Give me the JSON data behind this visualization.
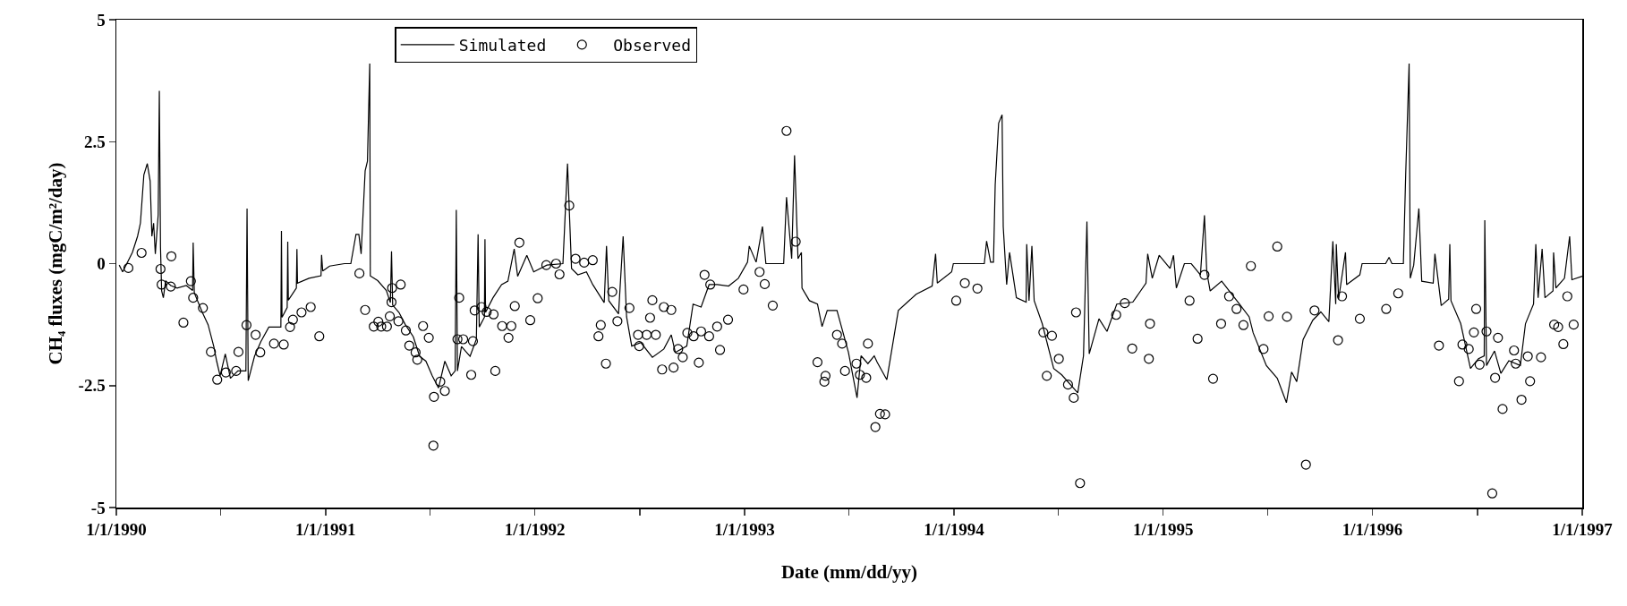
{
  "chart_data": {
    "type": "line",
    "xlabel": "Date (mm/dd/yy)",
    "ylabel": "CH₄ fluxes (mgC/m²/day)",
    "xlim": [
      "1990-01-01",
      "1997-01-01"
    ],
    "xticks": [
      {
        "value": "1990-01-01",
        "label": "1/1/1990"
      },
      {
        "value": "1990-07-02",
        "label": null
      },
      {
        "value": "1991-01-01",
        "label": "1/1/1991"
      },
      {
        "value": "1991-07-02",
        "label": null
      },
      {
        "value": "1992-01-01",
        "label": "1/1/1992"
      },
      {
        "value": "1992-07-02",
        "label": null
      },
      {
        "value": "1993-01-01",
        "label": "1/1/1993"
      },
      {
        "value": "1993-07-02",
        "label": null
      },
      {
        "value": "1994-01-01",
        "label": "1/1/1994"
      },
      {
        "value": "1994-07-02",
        "label": null
      },
      {
        "value": "1995-01-01",
        "label": "1/1/1995"
      },
      {
        "value": "1995-07-02",
        "label": null
      },
      {
        "value": "1996-01-01",
        "label": "1/1/1996"
      },
      {
        "value": "1996-07-02",
        "label": null
      },
      {
        "value": "1997-01-01",
        "label": "1/1/1997"
      }
    ],
    "ylim": [
      -5,
      5
    ],
    "yticks": [
      -5,
      -2.5,
      0,
      2.5,
      5
    ],
    "grid": false,
    "legend": "top",
    "series": [
      {
        "name": "Simulated",
        "color": "#000000",
        "line_style": "solid",
        "x": [
          "1990-01-06",
          "1990-01-12",
          "1990-01-29",
          "1990-02-07",
          "1990-02-12",
          "1990-02-18",
          "1990-02-24",
          "1990-03-01",
          "1990-03-04",
          "1990-03-07",
          "1990-03-10",
          "1990-03-15",
          "1990-03-17",
          "1990-03-19",
          "1990-03-21",
          "1990-03-24",
          "1990-03-28",
          "1990-04-06",
          "1990-04-17",
          "1990-05-03",
          "1990-05-14",
          "1990-05-15",
          "1990-05-17",
          "1990-05-31",
          "1990-06-10",
          "1990-06-20",
          "1990-06-25",
          "1990-07-01",
          "1990-07-10",
          "1990-07-19",
          "1990-08-01",
          "1990-08-15",
          "1990-08-17",
          "1990-08-19",
          "1990-08-30",
          "1990-09-10",
          "1990-09-24",
          "1990-10-15",
          "1990-10-16",
          "1990-10-17",
          "1990-10-26",
          "1990-10-27",
          "1990-10-28",
          "1990-11-11",
          "1990-11-12",
          "1990-11-13",
          "1990-12-03",
          "1990-12-24",
          "1990-12-25",
          "1990-12-27",
          "1991-01-08",
          "1991-02-03",
          "1991-02-14",
          "1991-02-23",
          "1991-02-28",
          "1991-03-04",
          "1991-03-11",
          "1991-03-15",
          "1991-03-19",
          "1991-03-20",
          "1991-04-02",
          "1991-04-17",
          "1991-04-24",
          "1991-04-26",
          "1991-04-28",
          "1991-05-09",
          "1991-05-20",
          "1991-06-03",
          "1991-06-14",
          "1991-06-25",
          "1991-07-06",
          "1991-07-17",
          "1991-07-28",
          "1991-08-08",
          "1991-08-15",
          "1991-08-17",
          "1991-08-19",
          "1991-08-26",
          "1991-09-10",
          "1991-09-21",
          "1991-09-24",
          "1991-09-26",
          "1991-10-05",
          "1991-10-06",
          "1991-10-07",
          "1991-10-20",
          "1991-11-04",
          "1991-11-15",
          "1991-11-26",
          "1991-12-02",
          "1991-12-18",
          "1991-12-30",
          "1992-01-22",
          "1992-02-19",
          "1992-02-27",
          "1992-03-05",
          "1992-03-16",
          "1992-03-31",
          "1992-04-11",
          "1992-05-01",
          "1992-05-05",
          "1992-05-09",
          "1992-05-26",
          "1992-06-03",
          "1992-06-09",
          "1992-06-18",
          "1992-07-04",
          "1992-07-24",
          "1992-08-13",
          "1992-08-26",
          "1992-09-02",
          "1992-09-22",
          "1992-10-03",
          "1992-10-17",
          "1992-10-31",
          "1992-11-14",
          "1992-12-04",
          "1992-12-21",
          "1993-01-06",
          "1993-01-09",
          "1993-01-21",
          "1993-02-01",
          "1993-02-07",
          "1993-03-10",
          "1993-03-15",
          "1993-03-24",
          "1993-03-29",
          "1993-04-04",
          "1993-04-10",
          "1993-04-11",
          "1993-04-24",
          "1993-05-08",
          "1993-05-16",
          "1993-05-25",
          "1993-06-11",
          "1993-07-01",
          "1993-07-16",
          "1993-07-23",
          "1993-08-04",
          "1993-08-15",
          "1993-08-20",
          "1993-09-06",
          "1993-09-26",
          "1993-10-27",
          "1993-11-24",
          "1993-11-30",
          "1993-12-03",
          "1993-12-28",
          "1993-12-31",
          "1994-02-23",
          "1994-02-27",
          "1994-03-06",
          "1994-03-11",
          "1994-03-14",
          "1994-03-20",
          "1994-03-26",
          "1994-03-28",
          "1994-04-03",
          "1994-04-08",
          "1994-04-20",
          "1994-05-07",
          "1994-05-08",
          "1994-05-12",
          "1994-05-17",
          "1994-05-21",
          "1994-06-04",
          "1994-06-24",
          "1994-07-08",
          "1994-08-05",
          "1994-08-15",
          "1994-08-21",
          "1994-08-25",
          "1994-09-11",
          "1994-09-25",
          "1994-10-12",
          "1994-11-09",
          "1994-12-02",
          "1994-12-05",
          "1994-12-13",
          "1994-12-25",
          "1995-01-13",
          "1995-01-19",
          "1995-01-24",
          "1995-02-07",
          "1995-02-19",
          "1995-03-07",
          "1995-03-14",
          "1995-03-18",
          "1995-03-24",
          "1995-04-13",
          "1995-05-14",
          "1995-05-31",
          "1995-06-07",
          "1995-06-30",
          "1995-07-19",
          "1995-08-04",
          "1995-08-13",
          "1995-08-22",
          "1995-09-02",
          "1995-09-19",
          "1995-10-03",
          "1995-10-17",
          "1995-10-24",
          "1995-10-29",
          "1995-10-30",
          "1995-11-03",
          "1995-11-15",
          "1995-11-17",
          "1995-12-10",
          "1995-12-14",
          "1996-01-24",
          "1996-01-30",
          "1996-02-04",
          "1996-02-24",
          "1996-02-28",
          "1996-03-05",
          "1996-03-07",
          "1996-03-13",
          "1996-03-22",
          "1996-03-27",
          "1996-04-16",
          "1996-04-19",
          "1996-04-30",
          "1996-05-13",
          "1996-05-15",
          "1996-05-17",
          "1996-06-03",
          "1996-06-20",
          "1996-07-04",
          "1996-07-14",
          "1996-07-15",
          "1996-07-18",
          "1996-08-01",
          "1996-08-12",
          "1996-08-26",
          "1996-09-15",
          "1996-09-24",
          "1996-10-08",
          "1996-10-12",
          "1996-10-16",
          "1996-10-23",
          "1996-10-28",
          "1996-11-11",
          "1996-11-12",
          "1996-11-16",
          "1996-12-01",
          "1996-12-10",
          "1996-12-14",
          "1997-01-01"
        ],
        "values": [
          -0.03,
          -0.17,
          0.23,
          0.56,
          0.83,
          1.82,
          2.05,
          1.69,
          0.56,
          0.83,
          0.2,
          1.0,
          3.54,
          0.35,
          -0.56,
          -0.7,
          -0.35,
          -0.45,
          -0.5,
          -0.45,
          -0.55,
          0.43,
          -0.6,
          -1.0,
          -1.25,
          -1.7,
          -2.0,
          -2.3,
          -1.85,
          -2.35,
          -2.2,
          -2.2,
          1.13,
          -2.4,
          -1.9,
          -1.6,
          -1.3,
          -1.3,
          0.67,
          -1.1,
          -0.9,
          0.45,
          -0.75,
          -0.5,
          0.3,
          -0.4,
          -0.3,
          -0.25,
          0.18,
          -0.15,
          -0.05,
          0.0,
          0.0,
          0.6,
          0.6,
          0.2,
          1.9,
          2.1,
          4.1,
          -0.25,
          -0.35,
          -0.55,
          -0.8,
          0.25,
          -0.85,
          -1.0,
          -1.25,
          -1.5,
          -1.9,
          -2.0,
          -2.3,
          -2.55,
          -2.0,
          -2.3,
          -2.2,
          1.1,
          -2.2,
          -1.7,
          -1.9,
          -1.55,
          0.6,
          -1.3,
          -1.1,
          0.5,
          -1.0,
          -0.7,
          -0.43,
          -0.36,
          0.3,
          -0.26,
          0.17,
          -0.17,
          -0.03,
          0,
          2.05,
          -0.1,
          -0.23,
          -0.17,
          -0.43,
          -0.8,
          0.36,
          -0.76,
          -1.03,
          0.56,
          -1.09,
          -1.69,
          -1.62,
          -1.92,
          -1.75,
          -1.46,
          -1.82,
          -1.69,
          -0.83,
          -0.89,
          -0.43,
          -0.43,
          -0.46,
          -0.3,
          0.03,
          0.36,
          0.03,
          0.76,
          0,
          0,
          1.36,
          0.1,
          2.22,
          0.1,
          0.23,
          -0.5,
          -0.76,
          -0.83,
          -1.29,
          -0.96,
          -0.96,
          -1.82,
          -2.75,
          -1.89,
          -2.05,
          -1.89,
          -2.02,
          -2.38,
          -0.96,
          -0.63,
          -0.46,
          0.2,
          -0.4,
          -0.17,
          0,
          0,
          0.46,
          0.03,
          0.03,
          1.62,
          2.88,
          3.05,
          0.76,
          -0.43,
          0.23,
          -0.7,
          -0.79,
          0.4,
          -0.76,
          0.36,
          -0.76,
          -1.23,
          -2.15,
          -2.28,
          -2.65,
          -1.89,
          0.86,
          -1.85,
          -1.13,
          -1.39,
          -0.83,
          -0.79,
          -0.4,
          0.2,
          -0.3,
          0.17,
          -0.1,
          0.17,
          -0.5,
          0,
          0,
          -0.23,
          0.99,
          -0.17,
          -0.56,
          -0.36,
          -0.83,
          -1.09,
          -1.42,
          -2.09,
          -2.35,
          -2.85,
          -2.22,
          -2.42,
          -1.56,
          -1.16,
          -0.99,
          -1.19,
          0.46,
          -0.83,
          0.4,
          -0.73,
          0.23,
          -0.43,
          -0.23,
          0,
          0,
          0.13,
          0,
          0,
          1.82,
          4.1,
          -0.3,
          -0.03,
          1.13,
          -0.36,
          -0.4,
          0.2,
          -0.86,
          -0.73,
          0.4,
          -0.76,
          -1.23,
          -2.15,
          -1.95,
          -1.89,
          0.89,
          -2.09,
          -1.79,
          -2.25,
          -1.99,
          -2.09,
          -1.23,
          -0.83,
          0.4,
          -0.7,
          0.3,
          -0.7,
          -0.56,
          0.23,
          -0.5,
          -0.3,
          0.56,
          -0.33,
          -0.26
        ]
      },
      {
        "name": "Observed",
        "type": "scatter",
        "color": "#000000",
        "marker": "circle",
        "x": [
          "1990-01-22",
          "1990-02-14",
          "1990-03-19",
          "1990-03-21",
          "1990-04-07",
          "1990-04-06",
          "1990-04-28",
          "1990-05-11",
          "1990-05-15",
          "1990-06-01",
          "1990-06-15",
          "1990-06-26",
          "1990-07-11",
          "1990-07-29",
          "1990-08-02",
          "1990-08-16",
          "1990-09-01",
          "1990-09-09",
          "1990-10-03",
          "1990-10-20",
          "1990-10-31",
          "1990-11-05",
          "1990-11-20",
          "1990-12-06",
          "1990-12-21",
          "1991-03-01",
          "1991-03-11",
          "1991-03-26",
          "1991-04-03",
          "1991-04-08",
          "1991-04-18",
          "1991-04-23",
          "1991-04-26",
          "1991-04-27",
          "1991-05-12",
          "1991-05-08",
          "1991-05-21",
          "1991-05-27",
          "1991-06-07",
          "1991-06-10",
          "1991-06-20",
          "1991-06-30",
          "1991-07-09",
          "1991-07-08",
          "1991-07-20",
          "1991-07-28",
          "1991-08-22",
          "1991-08-19",
          "1991-08-29",
          "1991-09-12",
          "1991-09-15",
          "1991-09-18",
          "1991-09-30",
          "1991-10-09",
          "1991-10-21",
          "1991-10-24",
          "1991-11-05",
          "1991-11-21",
          "1991-11-16",
          "1991-11-27",
          "1991-12-05",
          "1991-12-24",
          "1992-01-06",
          "1992-01-21",
          "1992-02-07",
          "1992-02-13",
          "1992-03-01",
          "1992-03-12",
          "1992-03-27",
          "1992-04-11",
          "1992-04-25",
          "1992-04-21",
          "1992-05-04",
          "1992-05-15",
          "1992-05-24",
          "1992-06-14",
          "1992-06-29",
          "1992-07-01",
          "1992-07-14",
          "1992-07-30",
          "1992-07-20",
          "1992-07-24",
          "1992-08-13",
          "1992-08-26",
          "1992-08-10",
          "1992-08-30",
          "1992-09-07",
          "1992-09-15",
          "1992-09-23",
          "1992-10-04",
          "1992-10-17",
          "1992-10-13",
          "1992-10-23",
          "1992-11-02",
          "1992-10-31",
          "1992-11-14",
          "1992-11-19",
          "1992-12-03",
          "1992-12-30",
          "1993-01-27",
          "1993-02-05",
          "1993-02-19",
          "1993-03-15",
          "1993-03-31",
          "1993-05-08",
          "1993-05-22",
          "1993-05-20",
          "1993-06-11",
          "1993-06-20",
          "1993-06-25",
          "1993-07-15",
          "1993-07-21",
          "1993-08-01",
          "1993-08-04",
          "1993-08-17",
          "1993-08-25",
          "1993-09-03",
          "1994-01-05",
          "1994-01-20",
          "1994-02-11",
          "1994-06-06",
          "1994-06-21",
          "1994-06-12",
          "1994-07-03",
          "1994-07-19",
          "1994-07-29",
          "1994-08-02",
          "1994-08-09",
          "1994-10-11",
          "1994-10-26",
          "1994-11-08",
          "1994-12-07",
          "1994-12-09",
          "1995-02-16",
          "1995-03-02",
          "1995-03-14",
          "1995-03-29",
          "1995-04-12",
          "1995-04-26",
          "1995-05-09",
          "1995-05-21",
          "1995-06-03",
          "1995-06-25",
          "1995-07-19",
          "1995-07-04",
          "1995-08-05",
          "1995-09-07",
          "1995-09-22",
          "1995-11-02",
          "1995-11-09",
          "1995-12-10",
          "1996-01-25",
          "1996-02-15",
          "1996-04-26",
          "1996-05-31",
          "1996-06-06",
          "1996-06-17",
          "1996-06-26",
          "1996-06-30",
          "1996-07-06",
          "1996-07-18",
          "1996-07-28",
          "1996-08-02",
          "1996-08-07",
          "1996-08-15",
          "1996-09-04",
          "1996-09-07",
          "1996-09-17",
          "1996-09-28",
          "1996-10-02",
          "1996-10-21",
          "1996-11-13",
          "1996-11-20",
          "1996-11-29",
          "1996-12-06",
          "1996-12-17"
        ],
        "values": [
          -0.09,
          0.22,
          -0.11,
          -0.43,
          0.15,
          -0.47,
          -1.21,
          -0.36,
          -0.7,
          -0.91,
          -1.81,
          -2.38,
          -2.23,
          -2.2,
          -1.81,
          -1.26,
          -1.46,
          -1.82,
          -1.64,
          -1.66,
          -1.3,
          -1.15,
          -1.0,
          -0.89,
          -1.49,
          -0.2,
          -0.95,
          -1.29,
          -1.19,
          -1.29,
          -1.29,
          -1.08,
          -0.79,
          -0.5,
          -0.43,
          -1.18,
          -1.37,
          -1.68,
          -1.82,
          -1.97,
          -1.28,
          -1.52,
          -2.73,
          -3.73,
          -2.42,
          -2.61,
          -0.7,
          -1.55,
          -1.55,
          -2.28,
          -1.59,
          -0.96,
          -0.89,
          -0.99,
          -1.04,
          -2.2,
          -1.28,
          -1.28,
          -1.52,
          -0.87,
          0.43,
          -1.16,
          -0.71,
          -0.03,
          0,
          -0.22,
          1.19,
          0.1,
          0.02,
          0.07,
          -1.26,
          -1.49,
          -2.05,
          -0.58,
          -1.18,
          -0.91,
          -1.46,
          -1.69,
          -1.46,
          -1.46,
          -1.11,
          -0.75,
          -0.89,
          -0.95,
          -2.17,
          -2.13,
          -1.75,
          -1.92,
          -1.42,
          -1.49,
          -1.39,
          -2.03,
          -0.23,
          -0.43,
          -1.49,
          -1.29,
          -1.77,
          -1.15,
          -0.53,
          -0.17,
          -0.42,
          -0.86,
          2.72,
          0.45,
          -2.02,
          -2.3,
          -2.42,
          -1.46,
          -1.64,
          -2.2,
          -2.05,
          -2.28,
          -2.34,
          -1.64,
          -3.35,
          -3.08,
          -3.09,
          -0.76,
          -0.4,
          -0.51,
          -1.41,
          -1.48,
          -2.3,
          -1.95,
          -2.48,
          -2.75,
          -1.0,
          -4.5,
          -1.05,
          -0.81,
          -1.74,
          -1.95,
          -1.23,
          -0.76,
          -1.54,
          -0.23,
          -2.36,
          -1.23,
          -0.67,
          -0.93,
          -1.26,
          -0.05,
          -1.75,
          0.35,
          -1.08,
          -1.09,
          -4.12,
          -0.96,
          -1.57,
          -0.67,
          -1.13,
          -0.93,
          -0.61,
          -1.68,
          -2.41,
          -1.66,
          -1.75,
          -1.41,
          -0.93,
          -2.07,
          -1.39,
          -4.71,
          -2.34,
          -1.52,
          -2.98,
          -1.78,
          -2.05,
          -2.79,
          -1.9,
          -2.41,
          -1.92,
          -1.25,
          -1.3,
          -1.65,
          -0.67,
          -1.25
        ]
      }
    ]
  }
}
